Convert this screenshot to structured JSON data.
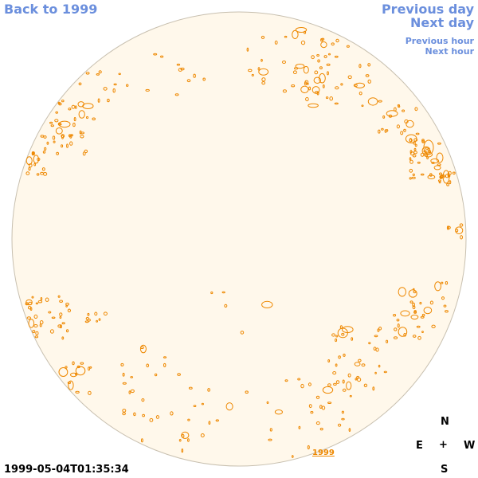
{
  "nav": {
    "back_label": "Back to 1999",
    "prev_day_label": "Previous day",
    "next_day_label": "Next day",
    "prev_hour_label": "Previous hour",
    "next_hour_label": "Next hour"
  },
  "image": {
    "timestamp": "1999-05-04T01:35:34",
    "year_label": "1999"
  },
  "compass": {
    "north": "N",
    "east": "E",
    "center": "+",
    "west": "W",
    "south": "S"
  },
  "colors": {
    "link": "#6b8fdd",
    "disk_fill": "#fff8eb",
    "disk_border": "#c8c0b0",
    "contour": "#ee8800"
  }
}
